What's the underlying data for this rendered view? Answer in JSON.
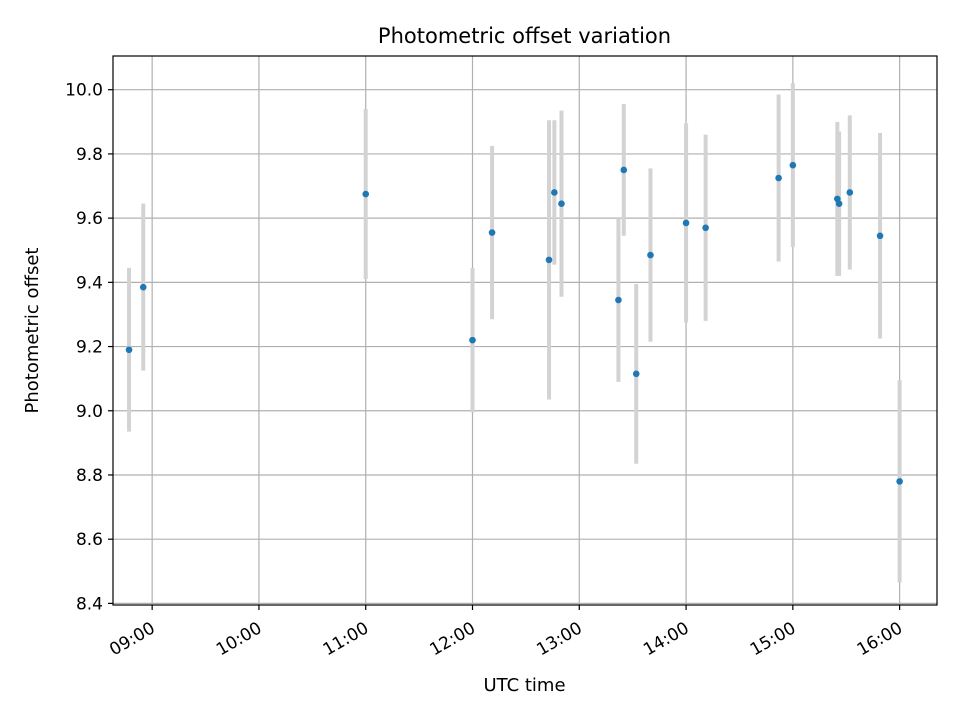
{
  "chart_data": {
    "type": "scatter",
    "title": "Photometric offset variation",
    "xlabel": "UTC time",
    "ylabel": "Photometric offset",
    "grid": true,
    "legend": "none",
    "xlim": [
      "08:38",
      "16:21"
    ],
    "ylim": [
      8.395,
      10.105
    ],
    "x_ticks": [
      "09:00",
      "10:00",
      "11:00",
      "12:00",
      "13:00",
      "14:00",
      "15:00",
      "16:00"
    ],
    "y_ticks": [
      8.4,
      8.6,
      8.8,
      9.0,
      9.2,
      9.4,
      9.6,
      9.8,
      10.0
    ],
    "series": [
      {
        "marker_color": "#1f77b4",
        "errorbar_color": "#d3d3d3",
        "points": [
          {
            "t": "08:47",
            "y": 9.19,
            "err": 0.255
          },
          {
            "t": "08:55",
            "y": 9.385,
            "err": 0.26
          },
          {
            "t": "11:00",
            "y": 9.675,
            "err": 0.265
          },
          {
            "t": "12:00",
            "y": 9.22,
            "err": 0.225
          },
          {
            "t": "12:11",
            "y": 9.555,
            "err": 0.27
          },
          {
            "t": "12:43",
            "y": 9.47,
            "err": 0.435
          },
          {
            "t": "12:46",
            "y": 9.68,
            "err": 0.225
          },
          {
            "t": "12:50",
            "y": 9.645,
            "err": 0.29
          },
          {
            "t": "13:22",
            "y": 9.345,
            "err": 0.255
          },
          {
            "t": "13:25",
            "y": 9.75,
            "err": 0.205
          },
          {
            "t": "13:32",
            "y": 9.115,
            "err": 0.28
          },
          {
            "t": "13:40",
            "y": 9.485,
            "err": 0.27
          },
          {
            "t": "14:00",
            "y": 9.585,
            "err": 0.31
          },
          {
            "t": "14:11",
            "y": 9.57,
            "err": 0.29
          },
          {
            "t": "14:52",
            "y": 9.725,
            "err": 0.26
          },
          {
            "t": "15:00",
            "y": 9.765,
            "err": 0.255
          },
          {
            "t": "15:25",
            "y": 9.66,
            "err": 0.24
          },
          {
            "t": "15:26",
            "y": 9.645,
            "err": 0.225
          },
          {
            "t": "15:32",
            "y": 9.68,
            "err": 0.24
          },
          {
            "t": "15:49",
            "y": 9.545,
            "err": 0.32
          },
          {
            "t": "16:00",
            "y": 8.78,
            "err": 0.315
          }
        ]
      }
    ]
  }
}
